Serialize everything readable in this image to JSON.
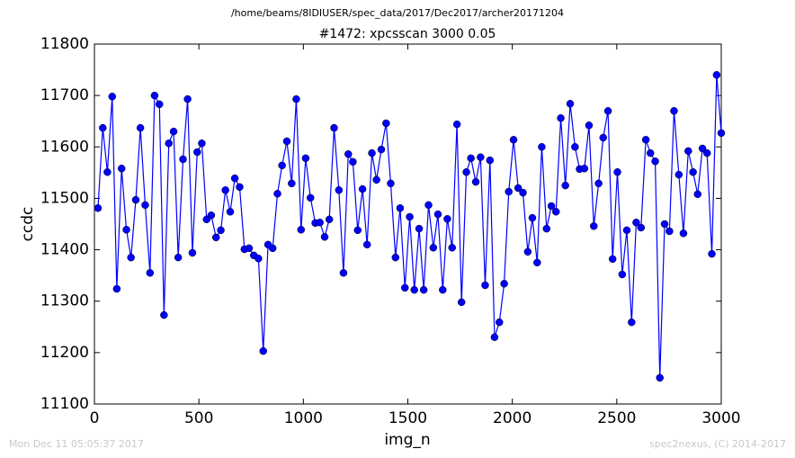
{
  "chart_data": {
    "type": "line",
    "suptitle": "/home/beams/8IDIUSER/spec_data/2017/Dec2017/archer20171204",
    "title": "#1472: xpcsscan 3000 0.05",
    "xlabel": "img_n",
    "ylabel": "ccdc",
    "footer_left": "Mon Dec 11 05:05:37 2017",
    "footer_right": "spec2nexus, (C) 2014-2017",
    "xlim": [
      0,
      3000
    ],
    "xticks": [
      0,
      500,
      1000,
      1500,
      2000,
      2500,
      3000
    ],
    "ylim": [
      11100,
      11800
    ],
    "yticks": [
      11100,
      11200,
      11300,
      11400,
      11500,
      11600,
      11700,
      11800
    ],
    "x": [
      17,
      40,
      62,
      85,
      107,
      130,
      153,
      175,
      198,
      220,
      243,
      266,
      288,
      311,
      333,
      356,
      379,
      401,
      424,
      446,
      469,
      492,
      514,
      537,
      559,
      582,
      605,
      627,
      650,
      672,
      695,
      718,
      740,
      763,
      785,
      808,
      831,
      853,
      876,
      898,
      921,
      944,
      966,
      989,
      1011,
      1034,
      1057,
      1079,
      1102,
      1124,
      1147,
      1170,
      1192,
      1215,
      1237,
      1260,
      1283,
      1305,
      1328,
      1350,
      1373,
      1396,
      1418,
      1441,
      1463,
      1486,
      1509,
      1531,
      1554,
      1576,
      1599,
      1622,
      1644,
      1667,
      1689,
      1712,
      1735,
      1757,
      1780,
      1802,
      1825,
      1848,
      1870,
      1893,
      1915,
      1938,
      1961,
      1983,
      2006,
      2028,
      2051,
      2074,
      2096,
      2119,
      2141,
      2164,
      2187,
      2209,
      2232,
      2254,
      2277,
      2300,
      2322,
      2345,
      2367,
      2390,
      2413,
      2435,
      2458,
      2480,
      2503,
      2526,
      2548,
      2571,
      2593,
      2616,
      2639,
      2661,
      2684,
      2706,
      2729,
      2752,
      2774,
      2797,
      2819,
      2842,
      2865,
      2887,
      2910,
      2932,
      2955,
      2978,
      3000
    ],
    "series": [
      {
        "color": "#0000ff",
        "values": [
          11481,
          11637,
          11551,
          11698,
          11324,
          11558,
          11439,
          11385,
          11497,
          11637,
          11487,
          11355,
          11700,
          11683,
          11273,
          11607,
          11630,
          11385,
          11576,
          11693,
          11394,
          11590,
          11607,
          11459,
          11467,
          11424,
          11438,
          11516,
          11474,
          11539,
          11522,
          11401,
          11403,
          11389,
          11383,
          11203,
          11410,
          11403,
          11509,
          11564,
          11611,
          11529,
          11693,
          11439,
          11578,
          11501,
          11452,
          11453,
          11425,
          11459,
          11637,
          11516,
          11355,
          11586,
          11571,
          11438,
          11518,
          11410,
          11588,
          11536,
          11595,
          11646,
          11529,
          11385,
          11481,
          11326,
          11464,
          11322,
          11441,
          11322,
          11487,
          11404,
          11469,
          11322,
          11460,
          11404,
          11644,
          11298,
          11551,
          11578,
          11532,
          11580,
          11331,
          11574,
          11230,
          11259,
          11334,
          11513,
          11614,
          11520,
          11511,
          11396,
          11462,
          11375,
          11600,
          11441,
          11485,
          11474,
          11656,
          11525,
          11684,
          11600,
          11557,
          11558,
          11642,
          11446,
          11529,
          11618,
          11670,
          11382,
          11551,
          11352,
          11438,
          11259,
          11453,
          11443,
          11614,
          11588,
          11572,
          11151,
          11450,
          11436,
          11670,
          11546,
          11432,
          11592,
          11551,
          11508,
          11597,
          11588,
          11392,
          11740,
          11627
        ]
      }
    ]
  }
}
